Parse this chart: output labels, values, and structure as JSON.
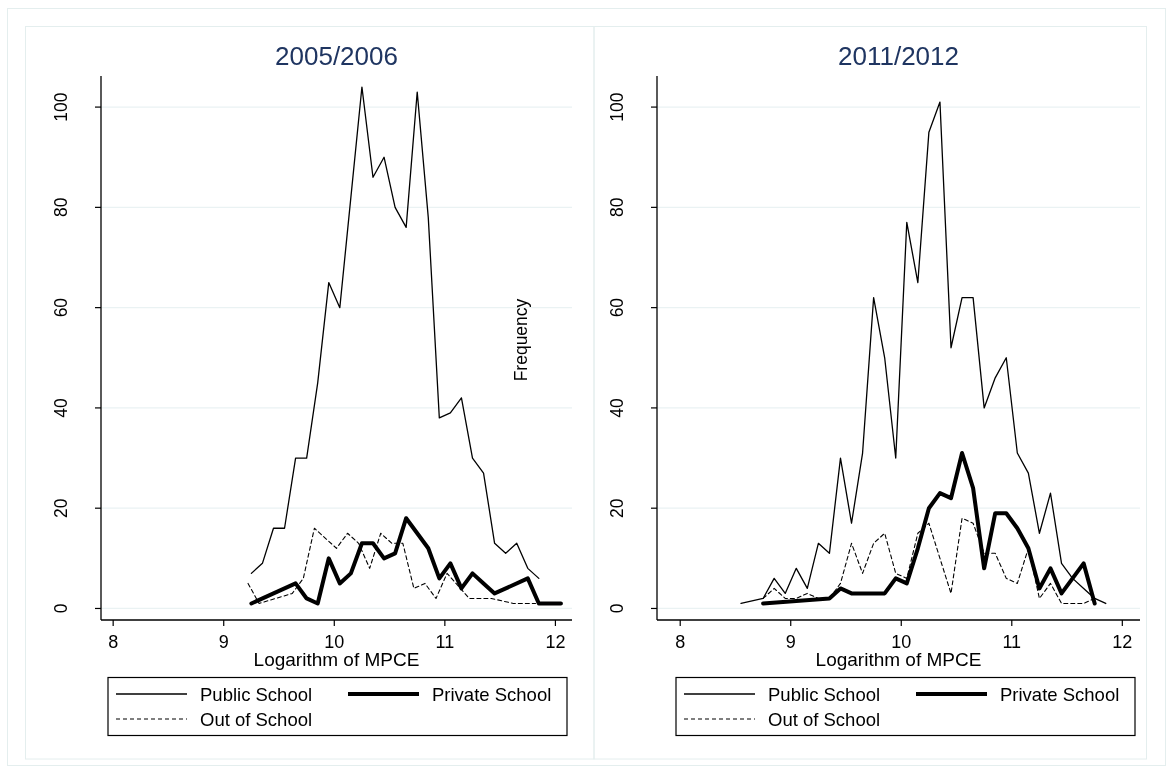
{
  "chart_data": [
    {
      "type": "line",
      "title": "2005/2006",
      "xlabel": "Logarithm of MPCE",
      "ylabel": "Frequency",
      "xlim": [
        7.89,
        12.15
      ],
      "ylim": [
        -2.3,
        106.2
      ],
      "xticks": [
        8,
        9,
        10,
        11,
        12
      ],
      "yticks": [
        0,
        20,
        40,
        60,
        80,
        100
      ],
      "grid": "y",
      "legend": "bottom",
      "series": [
        {
          "name": "Public School",
          "color": "#000000",
          "line_style": "solid",
          "x": [
            9.25,
            9.35,
            9.45,
            9.55,
            9.65,
            9.75,
            9.85,
            9.95,
            10.05,
            10.15,
            10.25,
            10.35,
            10.45,
            10.55,
            10.65,
            10.75,
            10.85,
            10.95,
            11.05,
            11.15,
            11.25,
            11.35,
            11.45,
            11.55,
            11.65,
            11.75,
            11.85
          ],
          "values": [
            7,
            9,
            16,
            16,
            30,
            30,
            45,
            65,
            60,
            82,
            104,
            86,
            90,
            80,
            76,
            103,
            78,
            38,
            39,
            42,
            30,
            27,
            13,
            11,
            13,
            8,
            6
          ]
        },
        {
          "name": "Private School",
          "color": "#000000",
          "line_style": "solid",
          "x": [
            9.25,
            9.65,
            9.75,
            9.85,
            9.95,
            10.05,
            10.15,
            10.25,
            10.35,
            10.45,
            10.55,
            10.65,
            10.75,
            10.85,
            10.95,
            11.05,
            11.15,
            11.25,
            11.35,
            11.45,
            11.75,
            11.85,
            11.95,
            12.05
          ],
          "values": [
            1,
            5,
            2,
            1,
            10,
            5,
            7,
            13,
            13,
            10,
            11,
            18,
            15,
            12,
            6,
            9,
            4,
            7,
            5,
            3,
            6,
            1,
            1,
            1
          ]
        },
        {
          "name": "Out of School",
          "color": "#000000",
          "line_style": "dashed",
          "x": [
            9.22,
            9.32,
            9.62,
            9.72,
            9.82,
            10.02,
            10.12,
            10.22,
            10.32,
            10.42,
            10.52,
            10.62,
            10.72,
            10.82,
            10.92,
            11.02,
            11.22,
            11.42,
            11.62,
            11.82
          ],
          "values": [
            5,
            1,
            3,
            6,
            16,
            12,
            15,
            13,
            8,
            15,
            13,
            13,
            4,
            5,
            2,
            7,
            2,
            2,
            1,
            1
          ]
        }
      ]
    },
    {
      "type": "line",
      "title": "2011/2012",
      "xlabel": "Logarithm of MPCE",
      "xlim": [
        7.79,
        12.16
      ],
      "ylim": [
        -2.3,
        106.2
      ],
      "xticks": [
        8,
        9,
        10,
        11,
        12
      ],
      "yticks": [
        0,
        20,
        40,
        60,
        80,
        100
      ],
      "grid": "y",
      "legend": "bottom",
      "series": [
        {
          "name": "Public School",
          "color": "#000000",
          "line_style": "solid",
          "x": [
            8.55,
            8.75,
            8.85,
            8.95,
            9.05,
            9.15,
            9.25,
            9.35,
            9.45,
            9.55,
            9.65,
            9.75,
            9.85,
            9.95,
            10.05,
            10.15,
            10.25,
            10.35,
            10.45,
            10.55,
            10.65,
            10.75,
            10.85,
            10.95,
            11.05,
            11.15,
            11.25,
            11.35,
            11.45,
            11.55,
            11.65,
            11.75,
            11.85
          ],
          "values": [
            1,
            2,
            6,
            3,
            8,
            4,
            13,
            11,
            30,
            17,
            31,
            62,
            50,
            30,
            77,
            65,
            95,
            101,
            52,
            62,
            62,
            40,
            46,
            50,
            31,
            27,
            15,
            23,
            9,
            6,
            4,
            2,
            1
          ]
        },
        {
          "name": "Private School",
          "color": "#000000",
          "line_style": "solid",
          "x": [
            8.75,
            9.35,
            9.45,
            9.55,
            9.65,
            9.75,
            9.85,
            9.95,
            10.05,
            10.15,
            10.25,
            10.35,
            10.45,
            10.55,
            10.65,
            10.75,
            10.85,
            10.95,
            11.05,
            11.15,
            11.25,
            11.35,
            11.45,
            11.55,
            11.65,
            11.75
          ],
          "values": [
            1,
            2,
            4,
            3,
            3,
            3,
            3,
            6,
            5,
            12,
            20,
            23,
            22,
            31,
            24,
            8,
            19,
            19,
            16,
            12,
            4,
            8,
            3,
            6,
            9,
            1
          ]
        },
        {
          "name": "Out of School",
          "color": "#000000",
          "line_style": "dashed",
          "x": [
            8.75,
            8.85,
            8.95,
            9.05,
            9.15,
            9.25,
            9.35,
            9.45,
            9.55,
            9.65,
            9.75,
            9.85,
            9.95,
            10.05,
            10.15,
            10.25,
            10.35,
            10.45,
            10.55,
            10.65,
            10.75,
            10.85,
            10.95,
            11.05,
            11.15,
            11.25,
            11.35,
            11.45,
            11.55,
            11.65,
            11.75
          ],
          "values": [
            2,
            4,
            2,
            2,
            3,
            2,
            2,
            5,
            13,
            7,
            13,
            15,
            7,
            6,
            15,
            17,
            10,
            3,
            18,
            17,
            11,
            11,
            6,
            5,
            12,
            2,
            5,
            1,
            1,
            1,
            2
          ]
        }
      ]
    }
  ]
}
